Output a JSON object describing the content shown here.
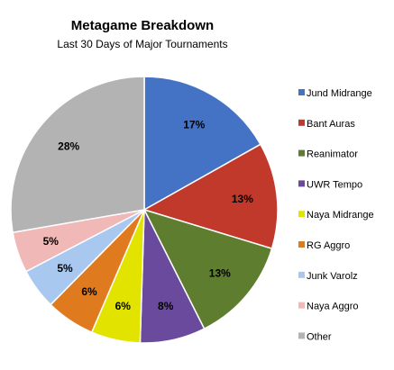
{
  "chart_data": {
    "type": "pie",
    "title": "Metagame Breakdown",
    "subtitle": "Last 30 Days of Major Tournaments",
    "legend_position": "right",
    "start_angle": "12 o'clock, clockwise",
    "slices": [
      {
        "label": "Jund Midrange",
        "value": 17,
        "display": "17%",
        "color": "#4472C4"
      },
      {
        "label": "Bant Auras",
        "value": 13,
        "display": "13%",
        "color": "#C0392B"
      },
      {
        "label": "Reanimator",
        "value": 13,
        "display": "13%",
        "color": "#5E7D2F"
      },
      {
        "label": "UWR Tempo",
        "value": 8,
        "display": "8%",
        "color": "#6A4A9C"
      },
      {
        "label": "Naya Midrange",
        "value": 6,
        "display": "6%",
        "color": "#E3E300"
      },
      {
        "label": "RG Aggro",
        "value": 6,
        "display": "6%",
        "color": "#E07A1F"
      },
      {
        "label": "Junk Varolz",
        "value": 5,
        "display": "5%",
        "color": "#A9C8F0"
      },
      {
        "label": "Naya Aggro",
        "value": 5,
        "display": "5%",
        "color": "#F1B8B8"
      },
      {
        "label": "Other",
        "value": 28,
        "display": "28%",
        "color": "#B3B3B3"
      }
    ]
  }
}
